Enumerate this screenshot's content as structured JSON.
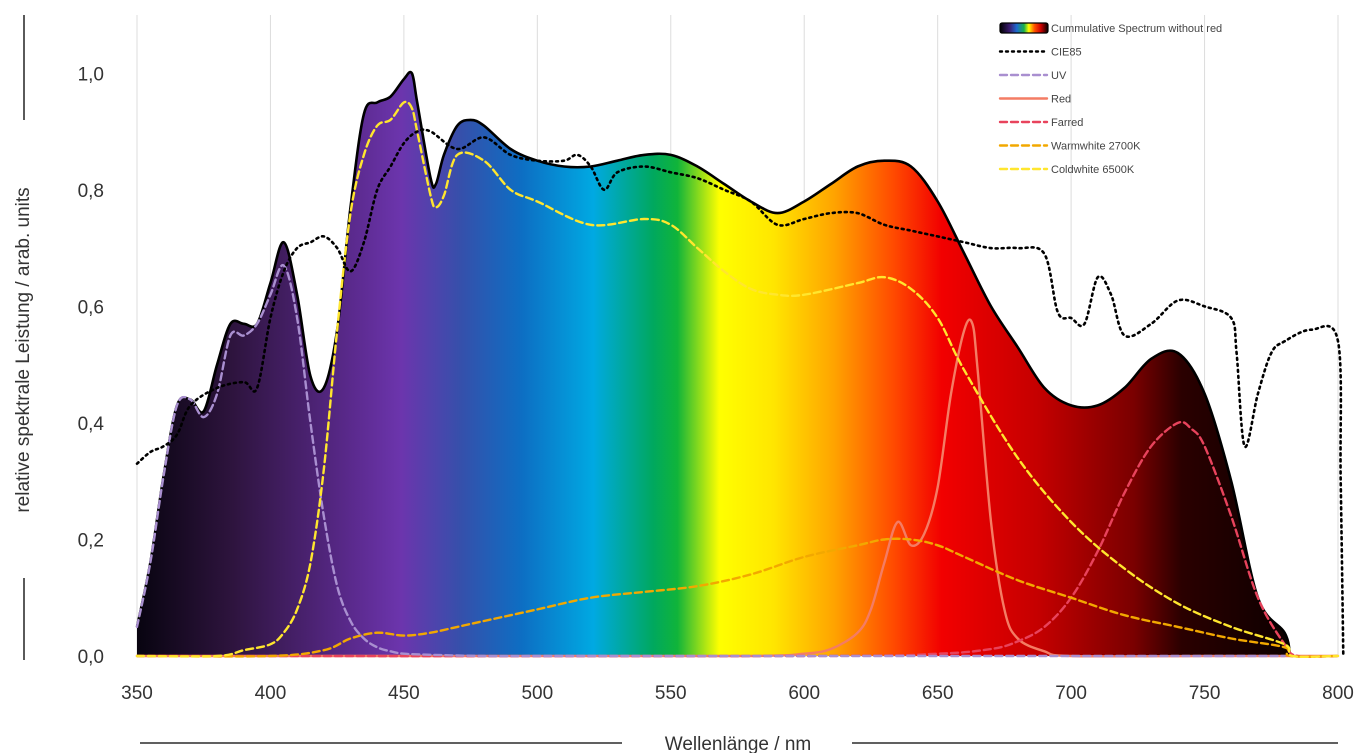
{
  "chart_data": {
    "type": "area",
    "title": "",
    "xlabel": "Wellenlänge / nm",
    "ylabel": "relative spektrale Leistung / arab. units",
    "xlim": [
      350,
      800
    ],
    "ylim": [
      0,
      1.1
    ],
    "x_ticks": [
      350,
      400,
      450,
      500,
      550,
      600,
      650,
      700,
      750,
      800
    ],
    "x_tick_labels": [
      "350",
      "400",
      "450",
      "500",
      "550",
      "600",
      "650",
      "700",
      "750",
      "800"
    ],
    "y_ticks": [
      0,
      0.2,
      0.4,
      0.6,
      0.8,
      1.0
    ],
    "y_tick_labels": [
      "0,0",
      "0,2",
      "0,4",
      "0,6",
      "0,8",
      "1,0"
    ],
    "grid": "vertical",
    "legend_position": "top-right",
    "series": [
      {
        "name": "Cummulative Spectrum without red",
        "style": "spectrum-fill",
        "color": "#000000",
        "x": [
          350,
          355,
          360,
          365,
          370,
          375,
          380,
          385,
          390,
          395,
          400,
          405,
          410,
          415,
          420,
          425,
          430,
          435,
          440,
          445,
          450,
          453,
          455,
          460,
          462,
          465,
          470,
          475,
          480,
          490,
          500,
          510,
          520,
          530,
          540,
          550,
          560,
          570,
          580,
          590,
          600,
          610,
          620,
          630,
          640,
          650,
          660,
          670,
          680,
          690,
          700,
          710,
          720,
          730,
          740,
          750,
          760,
          770,
          780,
          782
        ],
        "y": [
          0.05,
          0.16,
          0.31,
          0.43,
          0.44,
          0.42,
          0.5,
          0.57,
          0.57,
          0.57,
          0.64,
          0.71,
          0.62,
          0.48,
          0.46,
          0.56,
          0.77,
          0.93,
          0.95,
          0.96,
          0.99,
          1.0,
          0.95,
          0.82,
          0.81,
          0.86,
          0.91,
          0.92,
          0.91,
          0.87,
          0.85,
          0.84,
          0.84,
          0.85,
          0.86,
          0.86,
          0.84,
          0.81,
          0.78,
          0.76,
          0.78,
          0.81,
          0.84,
          0.85,
          0.84,
          0.78,
          0.69,
          0.6,
          0.53,
          0.46,
          0.43,
          0.43,
          0.46,
          0.51,
          0.52,
          0.45,
          0.3,
          0.1,
          0.04,
          0.0
        ]
      },
      {
        "name": "CIE85",
        "style": "dotted",
        "color": "#000000",
        "x": [
          350,
          355,
          360,
          365,
          370,
          380,
          390,
          395,
          400,
          405,
          410,
          415,
          420,
          425,
          430,
          435,
          440,
          445,
          450,
          455,
          460,
          470,
          480,
          490,
          500,
          510,
          515,
          520,
          525,
          530,
          540,
          550,
          560,
          570,
          580,
          590,
          600,
          610,
          620,
          630,
          640,
          650,
          660,
          670,
          680,
          690,
          695,
          700,
          705,
          710,
          715,
          720,
          730,
          740,
          750,
          760,
          762,
          765,
          770,
          775,
          780,
          790,
          800,
          801,
          802
        ],
        "y": [
          0.33,
          0.35,
          0.36,
          0.38,
          0.43,
          0.46,
          0.47,
          0.46,
          0.58,
          0.66,
          0.7,
          0.71,
          0.72,
          0.7,
          0.66,
          0.71,
          0.8,
          0.84,
          0.88,
          0.9,
          0.9,
          0.87,
          0.89,
          0.86,
          0.85,
          0.85,
          0.86,
          0.84,
          0.8,
          0.83,
          0.84,
          0.83,
          0.82,
          0.8,
          0.78,
          0.74,
          0.75,
          0.76,
          0.76,
          0.74,
          0.73,
          0.72,
          0.71,
          0.7,
          0.7,
          0.69,
          0.59,
          0.58,
          0.57,
          0.65,
          0.62,
          0.55,
          0.57,
          0.61,
          0.6,
          0.58,
          0.52,
          0.36,
          0.45,
          0.52,
          0.54,
          0.56,
          0.54,
          0.3,
          0.0
        ]
      },
      {
        "name": "UV",
        "style": "dashed",
        "color": "#a98fd0",
        "x": [
          350,
          355,
          360,
          365,
          370,
          375,
          380,
          385,
          390,
          395,
          400,
          405,
          410,
          415,
          420,
          425,
          430,
          435,
          440,
          445,
          450,
          460,
          480,
          500,
          550,
          600,
          650,
          700,
          750,
          780
        ],
        "y": [
          0.05,
          0.16,
          0.31,
          0.43,
          0.44,
          0.41,
          0.45,
          0.55,
          0.55,
          0.57,
          0.62,
          0.67,
          0.58,
          0.4,
          0.24,
          0.12,
          0.06,
          0.03,
          0.015,
          0.008,
          0.004,
          0.002,
          0.0,
          0.0,
          0.0,
          0.0,
          0.0,
          0.0,
          0.0,
          0.0
        ]
      },
      {
        "name": "Red",
        "style": "solid",
        "color": "#f47c64",
        "x": [
          350,
          500,
          580,
          600,
          610,
          620,
          625,
          630,
          635,
          640,
          645,
          650,
          655,
          660,
          663,
          665,
          670,
          675,
          680,
          690,
          700,
          750,
          800
        ],
        "y": [
          0.0,
          0.0,
          0.0,
          0.004,
          0.012,
          0.04,
          0.08,
          0.16,
          0.23,
          0.19,
          0.21,
          0.29,
          0.45,
          0.56,
          0.57,
          0.49,
          0.23,
          0.08,
          0.03,
          0.008,
          0.0,
          0.0,
          0.0
        ]
      },
      {
        "name": "Farred",
        "style": "dashed",
        "color": "#e8435c",
        "x": [
          350,
          600,
          650,
          670,
          680,
          690,
          700,
          710,
          720,
          730,
          740,
          745,
          750,
          760,
          770,
          780,
          785,
          800
        ],
        "y": [
          0.0,
          0.0,
          0.004,
          0.012,
          0.025,
          0.05,
          0.1,
          0.18,
          0.28,
          0.36,
          0.4,
          0.39,
          0.36,
          0.24,
          0.1,
          0.02,
          0.0,
          0.0
        ]
      },
      {
        "name": "Warmwhite 2700K",
        "style": "dashed",
        "color": "#f2a800",
        "x": [
          350,
          400,
          420,
          430,
          440,
          450,
          460,
          470,
          480,
          500,
          520,
          540,
          560,
          580,
          600,
          620,
          630,
          640,
          650,
          660,
          680,
          700,
          720,
          740,
          760,
          780,
          782,
          800
        ],
        "y": [
          0.0,
          0.0,
          0.01,
          0.03,
          0.04,
          0.035,
          0.04,
          0.05,
          0.06,
          0.08,
          0.1,
          0.11,
          0.12,
          0.14,
          0.17,
          0.19,
          0.2,
          0.2,
          0.19,
          0.17,
          0.13,
          0.1,
          0.07,
          0.05,
          0.03,
          0.015,
          0.0,
          0.0
        ]
      },
      {
        "name": "Coldwhite 6500K",
        "style": "dashed",
        "color": "#ffe62e",
        "x": [
          350,
          380,
          390,
          400,
          405,
          410,
          415,
          420,
          425,
          430,
          435,
          440,
          445,
          450,
          453,
          455,
          460,
          462,
          465,
          470,
          480,
          490,
          500,
          520,
          540,
          550,
          560,
          570,
          580,
          590,
          600,
          620,
          630,
          640,
          650,
          660,
          680,
          700,
          720,
          740,
          760,
          780,
          783,
          800
        ],
        "y": [
          0.0,
          0.0,
          0.01,
          0.02,
          0.04,
          0.08,
          0.16,
          0.32,
          0.56,
          0.76,
          0.86,
          0.91,
          0.92,
          0.95,
          0.94,
          0.9,
          0.79,
          0.77,
          0.79,
          0.86,
          0.85,
          0.8,
          0.78,
          0.74,
          0.75,
          0.74,
          0.7,
          0.66,
          0.63,
          0.62,
          0.62,
          0.64,
          0.65,
          0.63,
          0.58,
          0.49,
          0.34,
          0.23,
          0.15,
          0.09,
          0.05,
          0.02,
          0.0,
          0.0
        ]
      }
    ]
  }
}
